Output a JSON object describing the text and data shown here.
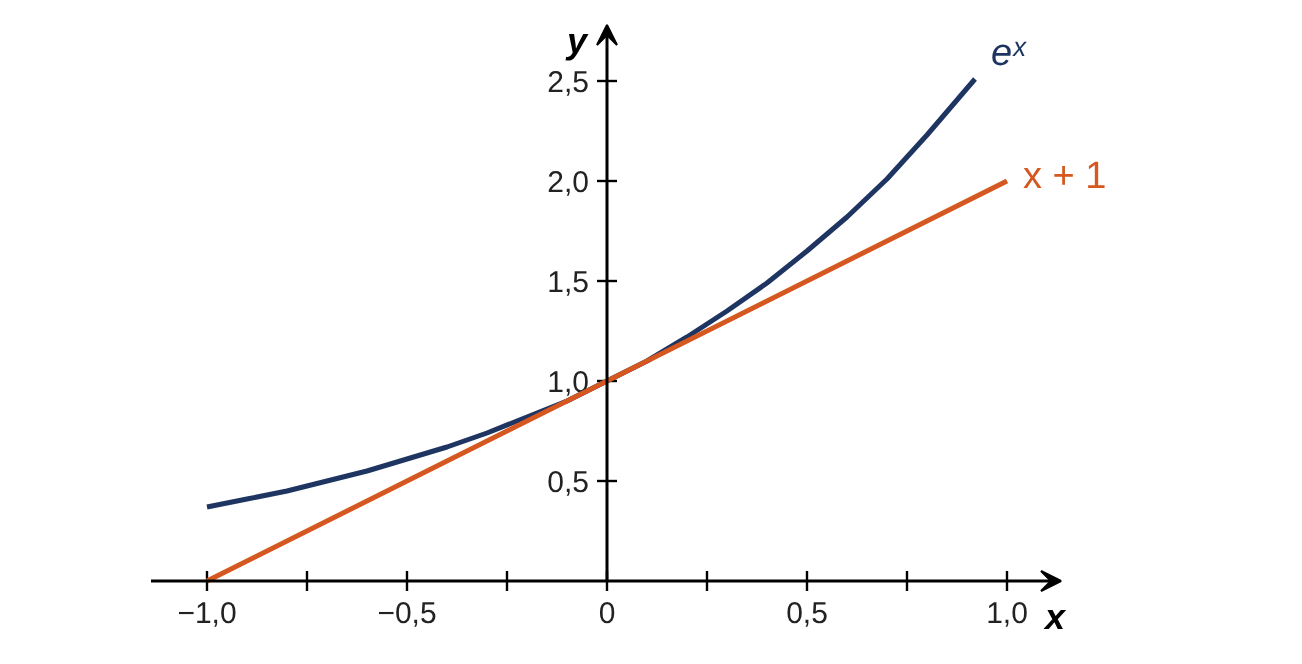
{
  "chart_data": {
    "type": "line",
    "xlabel": "x",
    "ylabel": "y",
    "xlim": [
      -1.14,
      1.135
    ],
    "ylim": [
      0,
      2.78
    ],
    "xticks": [
      {
        "value": -1,
        "label": "−1,0"
      },
      {
        "value": -0.75,
        "label": null
      },
      {
        "value": -0.5,
        "label": "−0,5"
      },
      {
        "value": -0.25,
        "label": null
      },
      0,
      {
        "value": 0.25,
        "label": null
      },
      {
        "value": 0.5,
        "label": "0,5"
      },
      {
        "value": 0.75,
        "label": null
      },
      {
        "value": 1,
        "label": "1,0"
      }
    ],
    "yticks": [
      {
        "value": 0.5,
        "label": "0,5"
      },
      {
        "value": 1,
        "label": "1,0"
      },
      {
        "value": 1.5,
        "label": "1,5"
      },
      {
        "value": 2,
        "label": "2,0"
      },
      {
        "value": 2.5,
        "label": "2,5"
      }
    ],
    "series": [
      {
        "name": "eˣ",
        "color": "#1e3461",
        "x": [
          -1,
          -0.9,
          -0.8,
          -0.7,
          -0.6,
          -0.5,
          -0.4,
          -0.3,
          -0.2,
          -0.1,
          0,
          0.1,
          0.2,
          0.3,
          0.4,
          0.5,
          0.6,
          0.7,
          0.8,
          0.92
        ],
        "values": [
          0.37,
          0.41,
          0.45,
          0.5,
          0.55,
          0.61,
          0.67,
          0.74,
          0.82,
          0.9,
          1.0,
          1.1,
          1.22,
          1.35,
          1.49,
          1.65,
          1.82,
          2.01,
          2.23,
          2.51
        ]
      },
      {
        "name": "x + 1",
        "color": "#d4581f",
        "x": [
          -1,
          1
        ],
        "values": [
          0,
          2
        ]
      }
    ]
  }
}
